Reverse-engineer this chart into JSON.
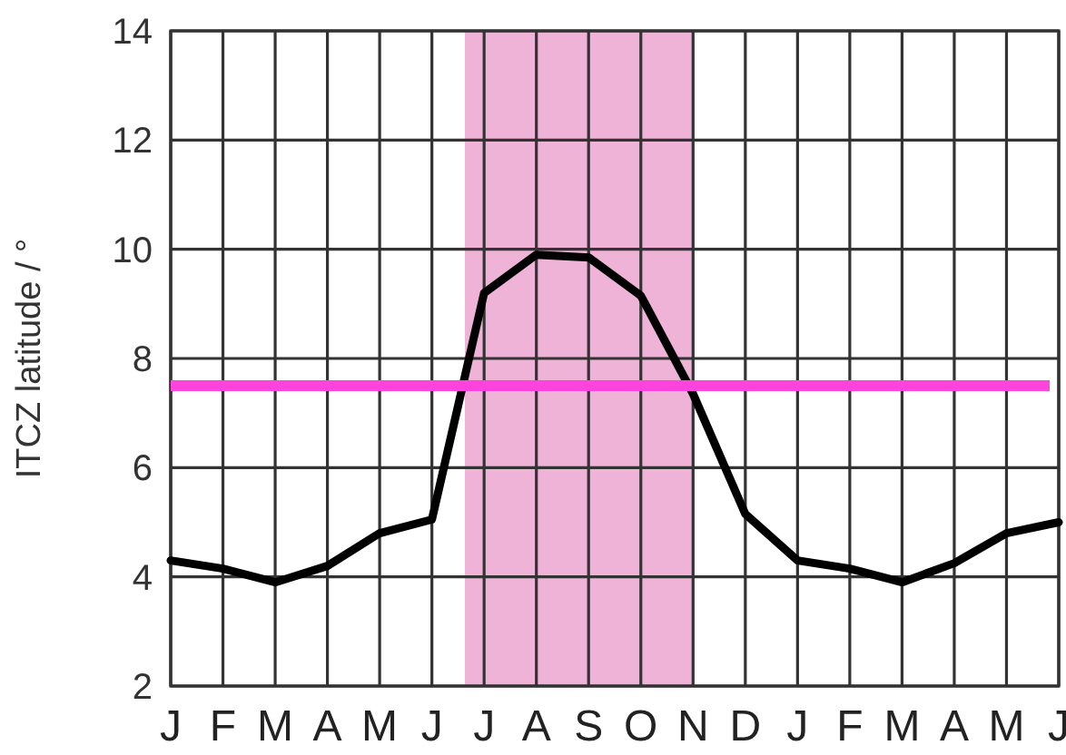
{
  "chart_data": {
    "type": "line",
    "ylabel": "ITCZ latitude / °",
    "categories": [
      "J",
      "F",
      "M",
      "A",
      "M",
      "J",
      "J",
      "A",
      "S",
      "O",
      "N",
      "D",
      "J",
      "F",
      "M",
      "A",
      "M",
      "J"
    ],
    "ylim": [
      2,
      14
    ],
    "yticks": [
      2,
      4,
      6,
      8,
      10,
      12,
      14
    ],
    "series": [
      {
        "color": "#000000",
        "values": [
          4.3,
          4.15,
          3.9,
          4.2,
          4.8,
          5.05,
          9.2,
          9.9,
          9.85,
          9.15,
          7.35,
          5.15,
          4.3,
          4.15,
          3.9,
          4.25,
          4.8,
          5.0
        ]
      }
    ],
    "ref_lines": [
      {
        "axis": "y",
        "value": 7.5,
        "color": "#ff44dd"
      }
    ],
    "grid": true,
    "marker": "none",
    "line_style": "solid"
  }
}
